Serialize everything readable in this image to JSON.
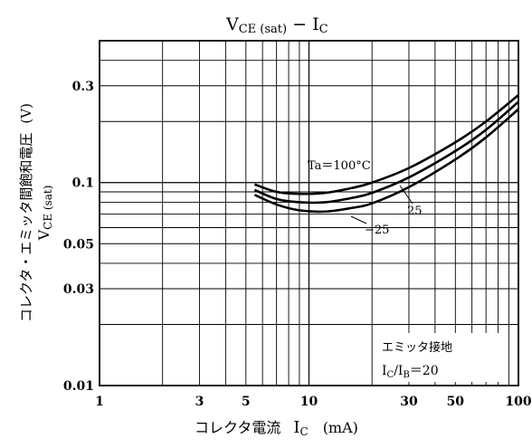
{
  "chart_data": {
    "type": "line",
    "title": {
      "main_left": "V",
      "main_left_sub": "CE (sat)",
      "separator": " − ",
      "main_right": "I",
      "main_right_sub": "C"
    },
    "xlabel": {
      "text": "コレクタ電流",
      "symbol": "I",
      "symbol_sub": "C",
      "unit": "(mA)"
    },
    "ylabel": {
      "line1": "コレクタ・エミッタ間飽和電圧",
      "line1_unit": "(V)",
      "line2": "V",
      "line2_sub": "CE (sat)"
    },
    "x_scale": "log",
    "y_scale": "log",
    "xlim": [
      1,
      100
    ],
    "ylim": [
      0.01,
      0.5
    ],
    "grid": true,
    "x_ticks": [
      {
        "value": 1,
        "label": "1"
      },
      {
        "value": 3,
        "label": "3"
      },
      {
        "value": 5,
        "label": "5"
      },
      {
        "value": 10,
        "label": "10"
      },
      {
        "value": 30,
        "label": "30"
      },
      {
        "value": 50,
        "label": "50"
      },
      {
        "value": 100,
        "label": "100"
      }
    ],
    "y_ticks": [
      {
        "value": 0.01,
        "label": "0.01"
      },
      {
        "value": 0.03,
        "label": "0.03"
      },
      {
        "value": 0.05,
        "label": "0.05"
      },
      {
        "value": 0.1,
        "label": "0.1"
      },
      {
        "value": 0.3,
        "label": "0.3"
      }
    ],
    "series": [
      {
        "name": "Ta=100°C",
        "x": [
          5.5,
          7,
          9,
          12,
          16,
          20,
          30,
          50,
          70,
          100
        ],
        "y": [
          0.098,
          0.09,
          0.088,
          0.089,
          0.094,
          0.1,
          0.118,
          0.158,
          0.2,
          0.27
        ]
      },
      {
        "name": "25",
        "x": [
          5.5,
          7,
          9,
          12,
          16,
          20,
          30,
          50,
          70,
          100
        ],
        "y": [
          0.092,
          0.083,
          0.08,
          0.08,
          0.084,
          0.089,
          0.106,
          0.143,
          0.182,
          0.25
        ]
      },
      {
        "name": "−25",
        "x": [
          5.5,
          7,
          9,
          12,
          16,
          20,
          30,
          50,
          70,
          100
        ],
        "y": [
          0.087,
          0.078,
          0.073,
          0.072,
          0.075,
          0.079,
          0.095,
          0.13,
          0.167,
          0.23
        ]
      }
    ],
    "annotations": {
      "curve_label_1": "Ta＝100°C",
      "curve_label_2": "25",
      "curve_label_3": "−25",
      "box_line1": "エミッタ接地",
      "box_line2_I": "I",
      "box_line2_sub_c": "C",
      "box_line2_slash": "/I",
      "box_line2_sub_b": "B",
      "box_line2_eq": "＝20"
    }
  }
}
